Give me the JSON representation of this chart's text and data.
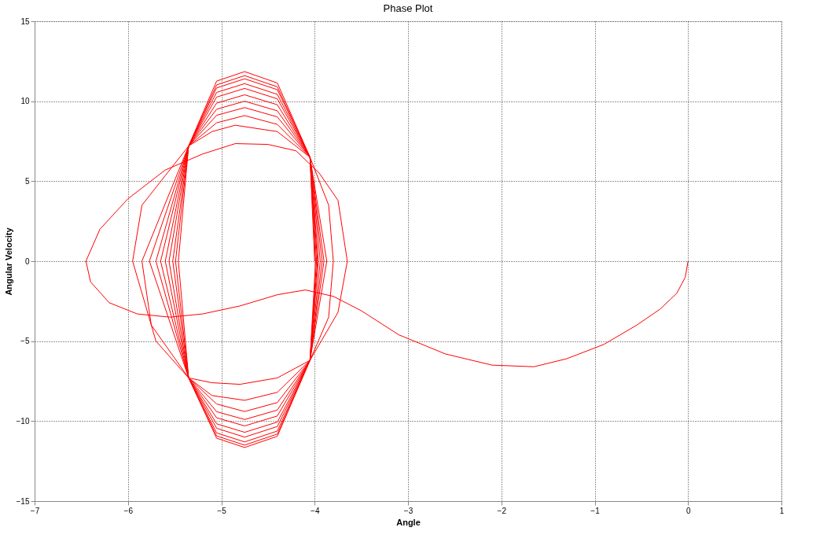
{
  "chart_data": {
    "type": "line",
    "title": "Phase Plot",
    "xlabel": "Angle",
    "ylabel": "Angular Velocity",
    "xlim": [
      -7,
      1
    ],
    "ylim": [
      -15,
      15
    ],
    "xticks": [
      -7,
      -6,
      -5,
      -4,
      -3,
      -2,
      -1,
      0,
      1
    ],
    "yticks": [
      -15,
      -10,
      -5,
      0,
      5,
      10,
      15
    ],
    "grid": true,
    "series": [
      {
        "color": "#ff0000",
        "x": [
          0,
          -0.03,
          -0.12,
          -0.3,
          -0.55,
          -0.9,
          -1.3,
          -1.65,
          -2.1,
          -2.6,
          -3.1,
          -3.5,
          -3.8,
          -4.1,
          -4.4,
          -4.8,
          -5.2,
          -5.55,
          -5.9,
          -6.2,
          -6.4,
          -6.45,
          -6.3,
          -6.0,
          -5.6,
          -5.2,
          -4.85,
          -4.5,
          -4.2,
          -3.95,
          -3.75,
          -3.65,
          -3.75,
          -4.05,
          -4.4,
          -4.8,
          -5.1,
          -5.35,
          -5.7,
          -5.95,
          -5.85,
          -5.35,
          -5.1,
          -4.85,
          -4.4,
          -4.05,
          -3.85,
          -3.8,
          -3.85,
          -4.05,
          -4.4,
          -4.75,
          -5.1,
          -5.35,
          -5.75,
          -5.85,
          -5.35,
          -5.05,
          -4.75,
          -4.4,
          -4.05,
          -3.87,
          -4.05,
          -4.4,
          -4.75,
          -5.05,
          -5.35,
          -5.77,
          -5.35,
          -5.05,
          -4.75,
          -4.4,
          -4.05,
          -3.9,
          -4.05,
          -4.4,
          -4.75,
          -5.05,
          -5.35,
          -5.7,
          -5.35,
          -5.05,
          -4.75,
          -4.4,
          -4.05,
          -3.92,
          -4.05,
          -4.4,
          -4.75,
          -5.05,
          -5.35,
          -5.65,
          -5.35,
          -5.05,
          -4.75,
          -4.4,
          -4.05,
          -3.94,
          -4.05,
          -4.4,
          -4.75,
          -5.05,
          -5.35,
          -5.6,
          -5.35,
          -5.05,
          -4.75,
          -4.4,
          -4.05,
          -3.96,
          -4.05,
          -4.4,
          -4.75,
          -5.05,
          -5.35,
          -5.56,
          -5.35,
          -5.05,
          -4.75,
          -4.4,
          -4.05,
          -3.97,
          -4.05,
          -4.4,
          -4.75,
          -5.05,
          -5.35,
          -5.52,
          -5.35,
          -5.05,
          -4.75,
          -4.4,
          -4.05,
          -3.98,
          -4.05,
          -4.4,
          -4.75,
          -5.05,
          -5.35,
          -5.49,
          -5.35,
          -5.05,
          -4.75,
          -4.4,
          -4.05,
          -3.99,
          -4.05,
          -4.4,
          -4.75,
          -5.05,
          -5.35,
          -5.46,
          -5.35,
          -5.05,
          -4.75,
          -4.4,
          -4.05,
          -4.0
        ],
        "values": [
          0,
          -1,
          -2,
          -3,
          -4,
          -5.2,
          -6.1,
          -6.6,
          -6.5,
          -5.8,
          -4.6,
          -3.1,
          -2.2,
          -1.8,
          -2.1,
          -2.8,
          -3.3,
          -3.5,
          -3.3,
          -2.6,
          -1.3,
          0,
          2,
          3.9,
          5.7,
          6.7,
          7.35,
          7.3,
          6.9,
          5.5,
          3.8,
          0,
          -3.2,
          -6.2,
          -7.3,
          -7.7,
          -7.6,
          -7.3,
          -5,
          0,
          3.5,
          7.2,
          8.1,
          8.5,
          8.1,
          6.5,
          3.5,
          0,
          -3.5,
          -6.2,
          -8.2,
          -8.7,
          -8.4,
          -7.3,
          -4,
          0,
          7.2,
          8.65,
          9.1,
          8.55,
          6.5,
          0,
          -6.2,
          -8.84,
          -9.4,
          -8.93,
          -7.3,
          0,
          7.2,
          9.12,
          9.6,
          9.02,
          6.5,
          0,
          -6.2,
          -9.31,
          -9.9,
          -9.41,
          -7.3,
          0,
          7.2,
          9.5,
          10.0,
          9.4,
          6.5,
          0,
          -6.2,
          -9.68,
          -10.3,
          -9.79,
          -7.3,
          0,
          7.2,
          9.88,
          10.4,
          9.78,
          6.5,
          0,
          -6.2,
          -10.06,
          -10.7,
          -10.17,
          -7.3,
          0,
          7.2,
          10.26,
          10.8,
          10.15,
          6.5,
          0,
          -6.2,
          -10.34,
          -11.0,
          -10.45,
          -7.3,
          0,
          7.2,
          10.55,
          11.1,
          10.43,
          6.5,
          0,
          -6.2,
          -10.62,
          -11.3,
          -10.74,
          -7.3,
          0,
          7.2,
          10.83,
          11.4,
          10.72,
          6.5,
          0,
          -6.2,
          -10.81,
          -11.5,
          -10.93,
          -7.3,
          0,
          7.2,
          11.02,
          11.6,
          10.9,
          6.5,
          0,
          -6.2,
          -10.95,
          -11.65,
          -11.07,
          -7.3,
          0,
          7.2,
          11.26,
          11.85,
          11.14,
          6.5,
          0
        ]
      }
    ]
  }
}
